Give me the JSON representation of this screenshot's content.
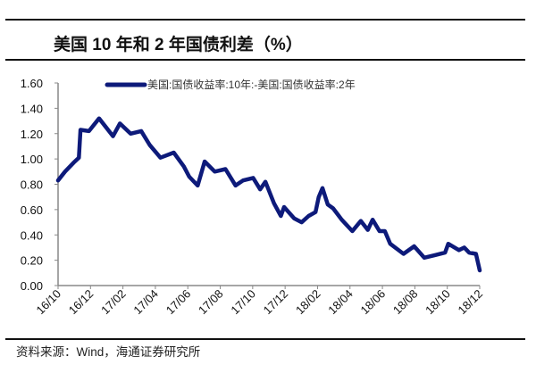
{
  "title": "美国 10 年和 2 年国债利差（%）",
  "source": "资料来源：Wind，海通证券研究所",
  "colors": {
    "series": "#0d1a7a",
    "axis": "#888888",
    "rule": "#111111"
  },
  "chart_data": {
    "type": "line",
    "title": "美国 10 年和 2 年国债利差（%）",
    "xlabel": "",
    "ylabel": "",
    "ylim": [
      0,
      1.6
    ],
    "yticks": [
      "0.00",
      "0.20",
      "0.40",
      "0.60",
      "0.80",
      "1.00",
      "1.20",
      "1.40",
      "1.60"
    ],
    "xlim": [
      "2016-10-01",
      "2018-12-01"
    ],
    "xticks": [
      "16/10",
      "16/12",
      "17/02",
      "17/04",
      "17/06",
      "17/08",
      "17/10",
      "17/12",
      "18/02",
      "18/04",
      "18/06",
      "18/08",
      "18/10",
      "18/12"
    ],
    "grid": false,
    "legend": "top",
    "series": [
      {
        "name": "美国:国债收益率:10年:-美国:国债收益率:2年",
        "x": [
          "2016-10-01",
          "2016-10-14",
          "2016-10-30",
          "2016-11-09",
          "2016-11-12",
          "2016-11-28",
          "2016-12-17",
          "2017-01-12",
          "2017-01-25",
          "2017-02-14",
          "2017-03-06",
          "2017-03-22",
          "2017-04-11",
          "2017-05-06",
          "2017-05-25",
          "2017-06-04",
          "2017-06-20",
          "2017-07-03",
          "2017-07-22",
          "2017-08-11",
          "2017-08-30",
          "2017-09-13",
          "2017-10-02",
          "2017-10-15",
          "2017-10-25",
          "2017-11-10",
          "2017-11-23",
          "2017-11-29",
          "2017-12-18",
          "2018-01-01",
          "2018-01-14",
          "2018-01-27",
          "2018-02-02",
          "2018-02-09",
          "2018-02-19",
          "2018-03-01",
          "2018-03-17",
          "2018-04-06",
          "2018-04-22",
          "2018-05-05",
          "2018-05-14",
          "2018-05-27",
          "2018-06-06",
          "2018-06-16",
          "2018-07-11",
          "2018-07-31",
          "2018-08-19",
          "2018-09-08",
          "2018-09-27",
          "2018-10-03",
          "2018-10-23",
          "2018-11-02",
          "2018-11-11",
          "2018-11-24",
          "2018-12-01"
        ],
        "y": [
          0.83,
          0.9,
          0.97,
          1.01,
          1.23,
          1.22,
          1.32,
          1.18,
          1.28,
          1.2,
          1.22,
          1.11,
          1.01,
          1.05,
          0.94,
          0.86,
          0.79,
          0.98,
          0.9,
          0.92,
          0.79,
          0.83,
          0.85,
          0.76,
          0.82,
          0.65,
          0.55,
          0.62,
          0.53,
          0.5,
          0.55,
          0.58,
          0.7,
          0.77,
          0.64,
          0.61,
          0.52,
          0.43,
          0.51,
          0.44,
          0.52,
          0.43,
          0.43,
          0.33,
          0.25,
          0.31,
          0.22,
          0.24,
          0.26,
          0.33,
          0.28,
          0.3,
          0.26,
          0.25,
          0.12
        ]
      }
    ]
  }
}
